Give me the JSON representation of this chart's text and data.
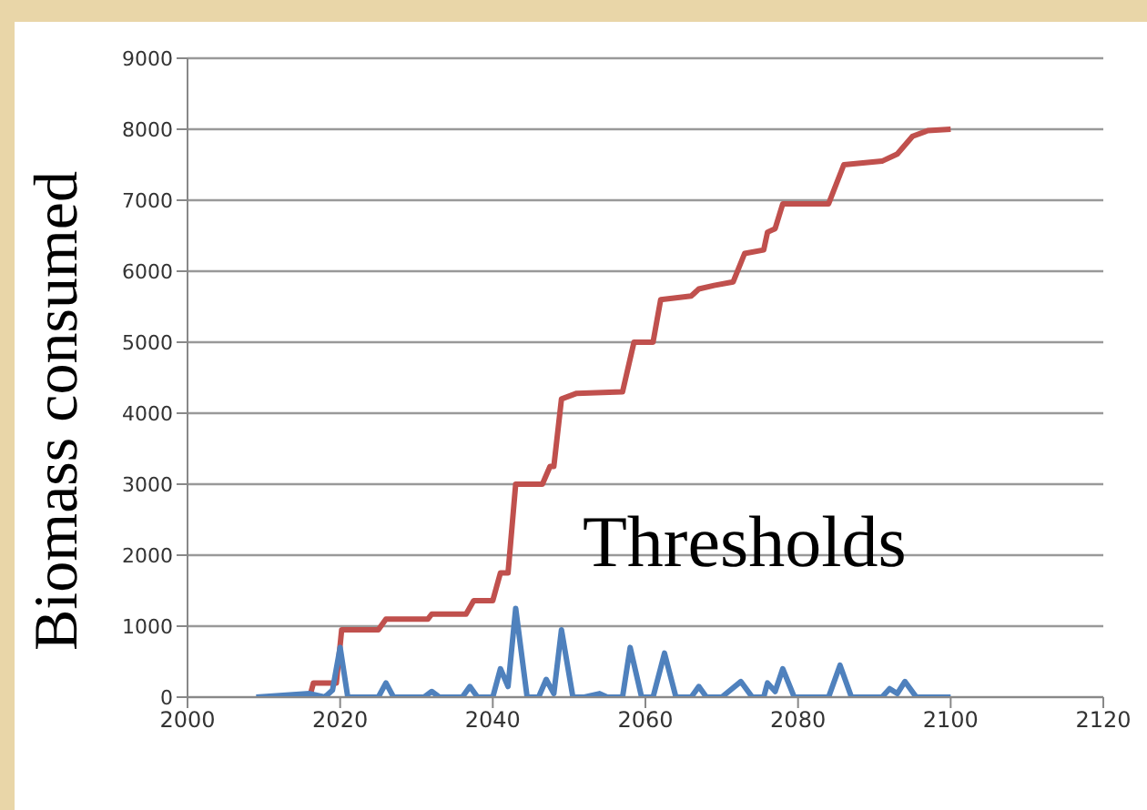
{
  "chart_data": {
    "type": "line",
    "ylabel": "Biomass consumed",
    "xlim": [
      2000,
      2120
    ],
    "xticks": [
      2000,
      2020,
      2040,
      2060,
      2080,
      2100,
      2120
    ],
    "ylim": [
      0,
      9000
    ],
    "yticks": [
      0,
      1000,
      2000,
      3000,
      4000,
      5000,
      6000,
      7000,
      8000,
      9000
    ],
    "grid": "y",
    "legend": false,
    "marker": "none",
    "series": [
      {
        "color": "#c0504d",
        "x": [
          2010,
          2016,
          2016.5,
          2019.5,
          2020.2,
          2025,
          2026,
          2031.5,
          2032,
          2036.5,
          2037.5,
          2040,
          2041,
          2042,
          2043,
          2046.5,
          2047.5,
          2048,
          2049,
          2051,
          2057,
          2058.5,
          2061,
          2062,
          2066,
          2067,
          2069,
          2071.5,
          2073,
          2075.5,
          2076,
          2077,
          2078,
          2084,
          2086,
          2091,
          2093,
          2095,
          2097,
          2100
        ],
        "values": [
          0,
          0,
          200,
          200,
          950,
          950,
          1100,
          1100,
          1170,
          1170,
          1360,
          1360,
          1750,
          1750,
          3000,
          3000,
          3250,
          3250,
          4200,
          4280,
          4300,
          5000,
          5000,
          5600,
          5650,
          5750,
          5800,
          5850,
          6250,
          6300,
          6550,
          6600,
          6950,
          6950,
          7500,
          7550,
          7650,
          7900,
          7980,
          8000
        ]
      },
      {
        "name": "Thresholds",
        "color": "#4f81bd",
        "x": [
          2009,
          2016,
          2018,
          2019,
          2020,
          2021,
          2025,
          2026,
          2027,
          2031,
          2032,
          2033,
          2036,
          2037,
          2038,
          2040,
          2041,
          2042,
          2043,
          2044.5,
          2046,
          2047,
          2048,
          2049,
          2050.5,
          2052,
          2054,
          2055,
          2057,
          2058,
          2059.5,
          2061,
          2062.5,
          2064,
          2066,
          2067,
          2068,
          2070,
          2072.5,
          2074,
          2075.5,
          2076,
          2077,
          2078,
          2079.5,
          2084,
          2085.5,
          2087,
          2091,
          2092,
          2093,
          2094,
          2095.5,
          2100
        ],
        "values": [
          0,
          50,
          0,
          100,
          700,
          0,
          0,
          200,
          0,
          0,
          80,
          0,
          0,
          150,
          0,
          0,
          400,
          150,
          1250,
          0,
          0,
          250,
          50,
          950,
          0,
          0,
          50,
          0,
          0,
          700,
          0,
          0,
          620,
          0,
          0,
          150,
          0,
          0,
          220,
          0,
          0,
          200,
          80,
          400,
          0,
          0,
          450,
          0,
          0,
          120,
          50,
          220,
          0,
          0
        ]
      }
    ]
  }
}
